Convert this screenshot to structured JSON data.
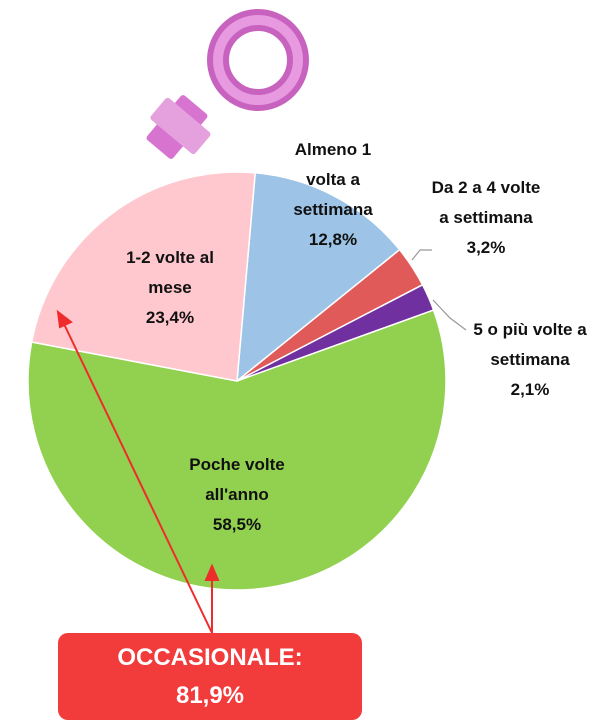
{
  "chart_data": {
    "type": "pie",
    "categories": [
      "Almeno 1 volta a settimana",
      "Da 2 a 4 volte a settimana",
      "5 o più volte a settimana",
      "Poche volte all'anno",
      "1-2 volte al mese"
    ],
    "values": [
      12.8,
      3.2,
      2.1,
      58.5,
      23.4
    ],
    "value_labels": [
      "12,8%",
      "3,2%",
      "2,1%",
      "58,5%",
      "23,4%"
    ],
    "colors": [
      "#9dc3e6",
      "#e05a5a",
      "#7030a0",
      "#92d050",
      "#ffc7ce"
    ],
    "annotation": {
      "title": "OCCASIONALE:",
      "text": "81,9%"
    }
  }
}
